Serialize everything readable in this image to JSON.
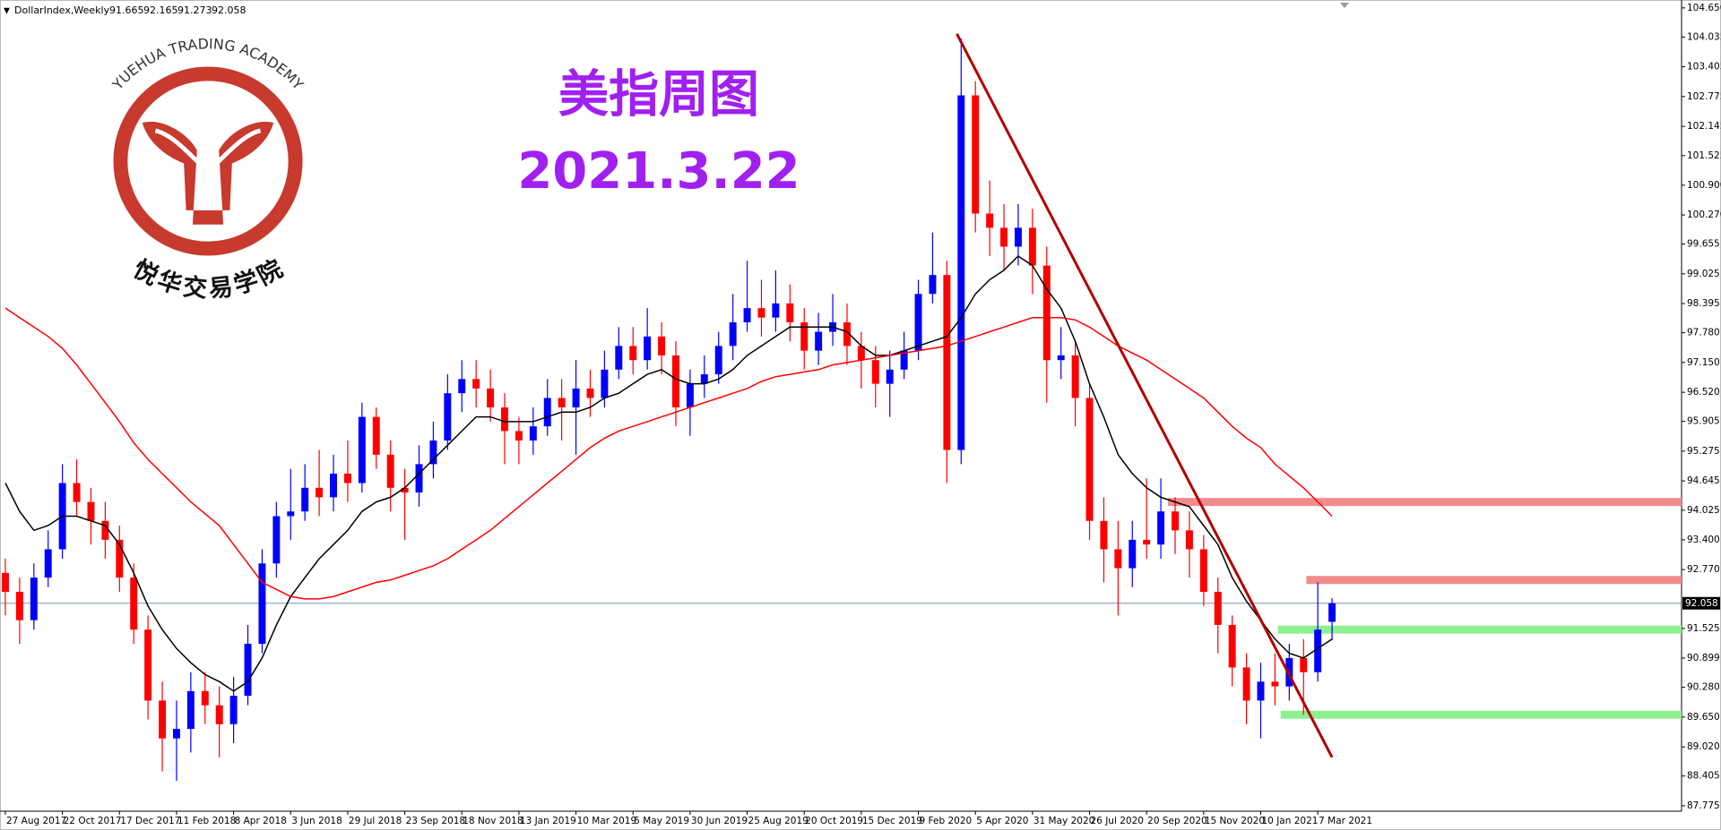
{
  "chart_data": {
    "type": "candlestick",
    "title": "DollarIndex,Weekly",
    "annotations": [
      "美指周图",
      "2021.3.22"
    ],
    "up_color": "#0000ff",
    "down_color": "#ff0000",
    "candles": [
      [
        92.7,
        93.0,
        91.8,
        92.3
      ],
      [
        92.3,
        92.6,
        91.2,
        91.7
      ],
      [
        91.7,
        92.9,
        91.5,
        92.6
      ],
      [
        92.6,
        93.6,
        92.4,
        93.2
      ],
      [
        93.2,
        95.0,
        93.0,
        94.6
      ],
      [
        94.6,
        95.1,
        93.9,
        94.2
      ],
      [
        94.2,
        94.5,
        93.3,
        93.8
      ],
      [
        93.8,
        94.2,
        93.0,
        93.4
      ],
      [
        93.4,
        93.7,
        92.3,
        92.6
      ],
      [
        92.6,
        92.9,
        91.2,
        91.5
      ],
      [
        91.5,
        91.8,
        89.6,
        90.0
      ],
      [
        90.0,
        90.4,
        88.5,
        89.2
      ],
      [
        89.2,
        90.0,
        88.3,
        89.4
      ],
      [
        89.4,
        90.6,
        88.9,
        90.2
      ],
      [
        90.2,
        90.6,
        89.5,
        89.9
      ],
      [
        89.9,
        90.3,
        88.8,
        89.5
      ],
      [
        89.5,
        90.5,
        89.1,
        90.1
      ],
      [
        90.1,
        91.6,
        89.9,
        91.2
      ],
      [
        91.2,
        93.2,
        91.0,
        92.9
      ],
      [
        92.9,
        94.2,
        92.6,
        93.9
      ],
      [
        93.9,
        94.9,
        93.4,
        94.0
      ],
      [
        94.0,
        95.0,
        93.8,
        94.5
      ],
      [
        94.5,
        95.3,
        93.9,
        94.3
      ],
      [
        94.3,
        95.2,
        94.0,
        94.8
      ],
      [
        94.8,
        95.5,
        94.2,
        94.6
      ],
      [
        94.6,
        96.3,
        94.4,
        96.0
      ],
      [
        96.0,
        96.2,
        94.9,
        95.2
      ],
      [
        95.2,
        95.5,
        94.0,
        94.5
      ],
      [
        94.5,
        94.9,
        93.4,
        94.4
      ],
      [
        94.4,
        95.4,
        94.1,
        95.0
      ],
      [
        95.0,
        95.9,
        94.7,
        95.5
      ],
      [
        95.5,
        96.9,
        95.3,
        96.5
      ],
      [
        96.5,
        97.2,
        96.1,
        96.8
      ],
      [
        96.8,
        97.2,
        96.2,
        96.6
      ],
      [
        96.6,
        97.0,
        95.9,
        96.2
      ],
      [
        96.2,
        96.5,
        95.0,
        95.7
      ],
      [
        95.7,
        96.0,
        95.0,
        95.5
      ],
      [
        95.5,
        96.2,
        95.2,
        95.8
      ],
      [
        95.8,
        96.8,
        95.6,
        96.4
      ],
      [
        96.4,
        96.8,
        95.5,
        96.2
      ],
      [
        96.2,
        97.2,
        95.2,
        96.6
      ],
      [
        96.6,
        97.0,
        96.0,
        96.4
      ],
      [
        96.4,
        97.4,
        96.2,
        97.0
      ],
      [
        97.0,
        97.9,
        96.8,
        97.5
      ],
      [
        97.5,
        97.9,
        96.9,
        97.2
      ],
      [
        97.2,
        98.3,
        97.0,
        97.7
      ],
      [
        97.7,
        98.0,
        96.9,
        97.3
      ],
      [
        97.3,
        97.6,
        95.8,
        96.2
      ],
      [
        96.2,
        97.0,
        95.6,
        96.7
      ],
      [
        96.7,
        97.3,
        96.4,
        96.9
      ],
      [
        96.9,
        97.8,
        96.7,
        97.5
      ],
      [
        97.5,
        98.6,
        97.2,
        98.0
      ],
      [
        98.0,
        99.3,
        97.8,
        98.3
      ],
      [
        98.3,
        98.9,
        97.7,
        98.1
      ],
      [
        98.1,
        99.1,
        97.8,
        98.4
      ],
      [
        98.4,
        98.8,
        97.6,
        98.0
      ],
      [
        98.0,
        98.3,
        97.0,
        97.4
      ],
      [
        97.4,
        98.2,
        97.1,
        97.8
      ],
      [
        97.8,
        98.6,
        97.5,
        98.0
      ],
      [
        98.0,
        98.4,
        97.1,
        97.5
      ],
      [
        97.5,
        97.8,
        96.6,
        97.2
      ],
      [
        97.2,
        97.5,
        96.2,
        96.7
      ],
      [
        96.7,
        97.4,
        96.0,
        97.0
      ],
      [
        97.0,
        97.8,
        96.8,
        97.4
      ],
      [
        97.4,
        98.9,
        97.2,
        98.6
      ],
      [
        98.6,
        99.9,
        98.4,
        99.0
      ],
      [
        99.0,
        99.3,
        94.6,
        95.3
      ],
      [
        95.3,
        104.0,
        95.0,
        102.8
      ],
      [
        102.8,
        103.1,
        99.9,
        100.3
      ],
      [
        100.3,
        101.0,
        99.4,
        100.0
      ],
      [
        100.0,
        100.5,
        99.1,
        99.6
      ],
      [
        99.6,
        100.5,
        99.2,
        100.0
      ],
      [
        100.0,
        100.4,
        98.6,
        99.2
      ],
      [
        99.2,
        99.6,
        96.3,
        97.2
      ],
      [
        97.2,
        97.9,
        96.8,
        97.3
      ],
      [
        97.3,
        97.6,
        95.8,
        96.4
      ],
      [
        96.4,
        96.7,
        93.4,
        93.8
      ],
      [
        93.8,
        94.3,
        92.5,
        93.2
      ],
      [
        93.2,
        93.8,
        91.8,
        92.8
      ],
      [
        92.8,
        93.8,
        92.4,
        93.4
      ],
      [
        93.4,
        94.7,
        93.0,
        93.3
      ],
      [
        93.3,
        94.7,
        93.0,
        94.0
      ],
      [
        94.0,
        94.3,
        93.1,
        93.6
      ],
      [
        93.6,
        94.0,
        92.6,
        93.2
      ],
      [
        93.2,
        93.5,
        92.0,
        92.3
      ],
      [
        92.3,
        92.6,
        91.0,
        91.6
      ],
      [
        91.6,
        91.8,
        90.3,
        90.7
      ],
      [
        90.7,
        91.0,
        89.5,
        90.0
      ],
      [
        90.0,
        90.8,
        89.2,
        90.4
      ],
      [
        90.4,
        91.0,
        89.9,
        90.3
      ],
      [
        90.3,
        91.2,
        90.0,
        90.9
      ],
      [
        90.9,
        91.3,
        89.7,
        90.6
      ],
      [
        90.6,
        92.5,
        90.4,
        91.5
      ],
      [
        91.665,
        92.165,
        91.273,
        92.058
      ]
    ],
    "lines": [
      {
        "color": "#000000",
        "values": [
          94.6,
          94.0,
          93.6,
          93.7,
          93.9,
          93.9,
          93.8,
          93.7,
          93.3,
          92.7,
          92.0,
          91.5,
          91.1,
          90.8,
          90.55,
          90.4,
          90.2,
          90.4,
          90.9,
          91.6,
          92.2,
          92.6,
          93.0,
          93.3,
          93.6,
          94.0,
          94.2,
          94.3,
          94.5,
          94.8,
          95.1,
          95.4,
          95.7,
          96.0,
          96.0,
          95.9,
          95.9,
          95.9,
          96.0,
          96.1,
          96.1,
          96.2,
          96.4,
          96.5,
          96.7,
          96.9,
          97.0,
          96.8,
          96.7,
          96.7,
          96.8,
          97.0,
          97.3,
          97.5,
          97.7,
          97.9,
          97.9,
          97.9,
          97.9,
          97.8,
          97.5,
          97.3,
          97.3,
          97.4,
          97.5,
          97.6,
          97.7,
          98.1,
          98.6,
          98.9,
          99.1,
          99.4,
          99.2,
          98.7,
          98.3,
          97.6,
          96.7,
          96.0,
          95.2,
          94.8,
          94.5,
          94.3,
          94.2,
          94.1,
          93.7,
          93.3,
          92.6,
          92.1,
          91.7,
          91.3,
          91.0,
          90.9,
          91.1,
          91.3
        ]
      },
      {
        "color": "#ff0000",
        "values": [
          98.3,
          98.1,
          97.9,
          97.7,
          97.45,
          97.1,
          96.7,
          96.3,
          95.9,
          95.45,
          95.1,
          94.8,
          94.5,
          94.2,
          93.95,
          93.7,
          93.3,
          92.9,
          92.5,
          92.35,
          92.2,
          92.15,
          92.15,
          92.2,
          92.3,
          92.4,
          92.5,
          92.55,
          92.65,
          92.75,
          92.85,
          93.0,
          93.2,
          93.4,
          93.6,
          93.85,
          94.1,
          94.35,
          94.6,
          94.85,
          95.1,
          95.35,
          95.55,
          95.7,
          95.8,
          95.9,
          96.0,
          96.1,
          96.2,
          96.3,
          96.4,
          96.5,
          96.6,
          96.75,
          96.85,
          96.9,
          96.95,
          97.0,
          97.1,
          97.15,
          97.2,
          97.25,
          97.3,
          97.35,
          97.4,
          97.45,
          97.5,
          97.6,
          97.7,
          97.8,
          97.9,
          98.0,
          98.1,
          98.1,
          98.1,
          98.05,
          97.9,
          97.7,
          97.5,
          97.35,
          97.2,
          97.0,
          96.8,
          96.6,
          96.4,
          96.1,
          95.8,
          95.55,
          95.35,
          95.0,
          94.75,
          94.5,
          94.2,
          93.9
        ]
      }
    ],
    "trendline": {
      "color": "#b00000",
      "x": [
        66.7,
        93.0
      ],
      "y": [
        104.1,
        88.8
      ]
    },
    "levels": [
      {
        "value": 94.2,
        "from": 81.5,
        "color": "#f28b8b"
      },
      {
        "value": 92.55,
        "from": 91.2,
        "color": "#f28b8b"
      },
      {
        "value": 91.5,
        "from": 89.2,
        "color": "#8ef08e"
      },
      {
        "value": 89.7,
        "from": 89.4,
        "color": "#8ef08e"
      }
    ],
    "price_line_color": "#8090c0",
    "xlim": [
      -0.375,
      117.5
    ],
    "ylim": [
      87.66,
      104.76
    ],
    "yticks": [
      {
        "value": 104.65,
        "label": "104.650"
      },
      104.035,
      103.405,
      102.775,
      102.145,
      101.525,
      {
        "value": 100.9,
        "label": "100.900"
      },
      {
        "value": 100.27,
        "label": "100.270"
      },
      99.655,
      99.025,
      98.395,
      {
        "value": 97.78,
        "label": "97.780"
      },
      {
        "value": 97.15,
        "label": "97.150"
      },
      {
        "value": 96.52,
        "label": "96.520"
      },
      95.905,
      95.275,
      94.645,
      94.025,
      {
        "value": 93.4,
        "label": "93.400"
      },
      {
        "value": 92.77,
        "label": "92.770"
      },
      91.525,
      90.899,
      {
        "value": 90.28,
        "label": "90.280"
      },
      {
        "value": 89.65,
        "label": "89.650"
      },
      {
        "value": 89.02,
        "label": "89.020"
      },
      88.405,
      87.775
    ],
    "xticks": [
      {
        "value": 0,
        "label": "27 Aug 2017"
      },
      {
        "value": 4,
        "label": "22 Oct 2017"
      },
      {
        "value": 8,
        "label": "17 Dec 2017"
      },
      {
        "value": 12,
        "label": "11 Feb 2018"
      },
      {
        "value": 16,
        "label": "8 Apr 2018"
      },
      {
        "value": 20,
        "label": "3 Jun 2018"
      },
      {
        "value": 24,
        "label": "29 Jul 2018"
      },
      {
        "value": 28,
        "label": "23 Sep 2018"
      },
      {
        "value": 32,
        "label": "18 Nov 2018"
      },
      {
        "value": 36,
        "label": "13 Jan 2019"
      },
      {
        "value": 40,
        "label": "10 Mar 2019"
      },
      {
        "value": 44,
        "label": "5 May 2019"
      },
      {
        "value": 48,
        "label": "30 Jun 2019"
      },
      {
        "value": 52,
        "label": "25 Aug 2019"
      },
      {
        "value": 56,
        "label": "20 Oct 2019"
      },
      {
        "value": 60,
        "label": "15 Dec 2019"
      },
      {
        "value": 64,
        "label": "9 Feb 2020"
      },
      {
        "value": 68,
        "label": "5 Apr 2020"
      },
      {
        "value": 72,
        "label": "31 May 2020"
      },
      {
        "value": 76,
        "label": "26 Jul 2020"
      },
      {
        "value": 80,
        "label": "20 Sep 2020"
      },
      {
        "value": 84,
        "label": "15 Nov 2020"
      },
      {
        "value": 88,
        "label": "10 Jan 2021"
      },
      {
        "value": 92,
        "label": "7 Mar 2021"
      }
    ]
  },
  "logo": {
    "text": "YUEHUA TRADING ACADEMY",
    "name": "悦华交易学院"
  }
}
